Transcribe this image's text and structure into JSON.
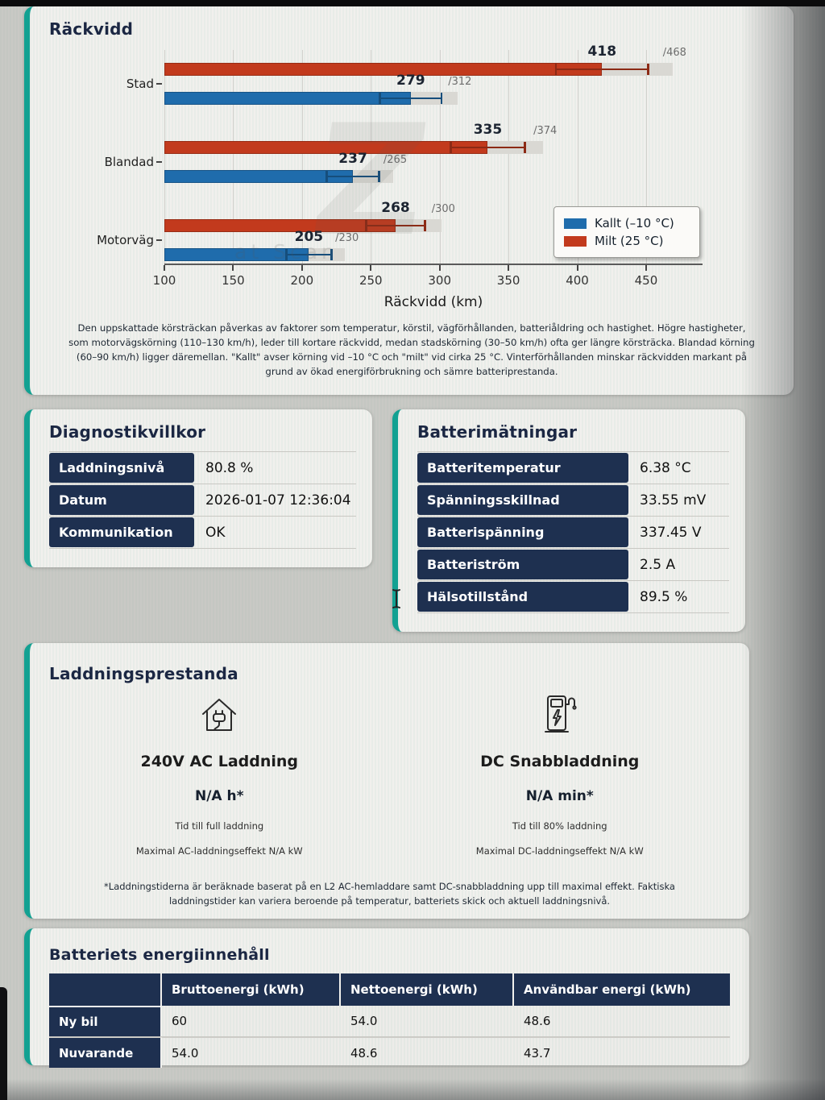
{
  "colors": {
    "accent_teal": "#12a192",
    "table_navy": "#1e3050",
    "series_cold_blue": "#1f6cac",
    "series_mild_red": "#c23a1d"
  },
  "range_section": {
    "title": "Räckvidd",
    "chart_data": {
      "type": "bar",
      "orientation": "horizontal",
      "categories": [
        "Stad",
        "Blandad",
        "Motorväg"
      ],
      "series": [
        {
          "name": "Milt (25 °C)",
          "color": "#c23a1d",
          "values": [
            418,
            335,
            268
          ],
          "max_values": [
            468,
            374,
            300
          ]
        },
        {
          "name": "Kallt (–10 °C)",
          "color": "#1f6cac",
          "values": [
            279,
            237,
            205
          ],
          "max_values": [
            312,
            265,
            230
          ]
        }
      ],
      "legend": [
        "Kallt (–10 °C)",
        "Milt (25 °C)"
      ],
      "legend_position": "lower-right",
      "xlabel": "Räckvidd (km)",
      "xlim": [
        100,
        491
      ],
      "xticks": [
        100,
        150,
        200,
        250,
        300,
        350,
        400,
        450
      ],
      "grid": true,
      "error_bar_fraction": 0.08,
      "value_labels": [
        "418 /468",
        "335 /374",
        "268 /300",
        "279 /312",
        "237 /265",
        "205 /230"
      ]
    },
    "watermark_glyph": "Z",
    "watermark_text": "at Scan",
    "description": "Den uppskattade körsträckan påverkas av faktorer som temperatur, körstil, vägförhållanden, batteriåldring och hastighet. Högre hastigheter, som motorvägskörning (110–130 km/h), leder till kortare räckvidd, medan stadskörning (30–50 km/h) ofta ger längre körsträcka. Blandad körning (60–90 km/h) ligger däremellan. \"Kallt\" avser körning vid –10 °C och \"milt\" vid cirka 25 °C. Vinterförhållanden minskar räckvidden markant på grund av ökad energiförbrukning och sämre batteriprestanda."
  },
  "diagnostics": {
    "title": "Diagnostikvillkor",
    "rows": [
      {
        "label": "Laddningsnivå",
        "value": "80.8 %"
      },
      {
        "label": "Datum",
        "value": "2026-01-07 12:36:04"
      },
      {
        "label": "Kommunikation",
        "value": "OK"
      }
    ]
  },
  "battery": {
    "title": "Batterimätningar",
    "rows": [
      {
        "label": "Batteritemperatur",
        "value": "6.38 °C"
      },
      {
        "label": "Spänningsskillnad",
        "value": "33.55 mV"
      },
      {
        "label": "Batterispänning",
        "value": "337.45 V"
      },
      {
        "label": "Batteriström",
        "value": "2.5 A"
      },
      {
        "label": "Hälsotillstånd",
        "value": "89.5 %"
      }
    ]
  },
  "charging": {
    "title": "Laddningsprestanda",
    "ac": {
      "icon": "home-charging-icon",
      "heading": "240V AC Laddning",
      "value": "N/A h*",
      "caption": "Tid till full laddning",
      "power": "Maximal AC-laddningseffekt N/A kW"
    },
    "dc": {
      "icon": "dc-fast-charger-icon",
      "heading": "DC Snabbladdning",
      "value": "N/A min*",
      "caption": "Tid till 80% laddning",
      "power": "Maximal DC-laddningseffekt N/A kW"
    },
    "footnote": "*Laddningstiderna är beräknade baserat på en L2 AC-hemladdare samt DC-snabbladdning upp till maximal effekt. Faktiska laddningstider kan variera beroende på temperatur, batteriets skick och aktuell laddningsnivå."
  },
  "energy": {
    "title": "Batteriets energiinnehåll",
    "columns": [
      "",
      "Bruttoenergi (kWh)",
      "Nettoenergi (kWh)",
      "Användbar energi (kWh)"
    ],
    "rows": [
      {
        "label": "Ny bil",
        "values": [
          "60",
          "54.0",
          "48.6"
        ]
      },
      {
        "label": "Nuvarande",
        "values": [
          "54.0",
          "48.6",
          "43.7"
        ]
      }
    ]
  }
}
